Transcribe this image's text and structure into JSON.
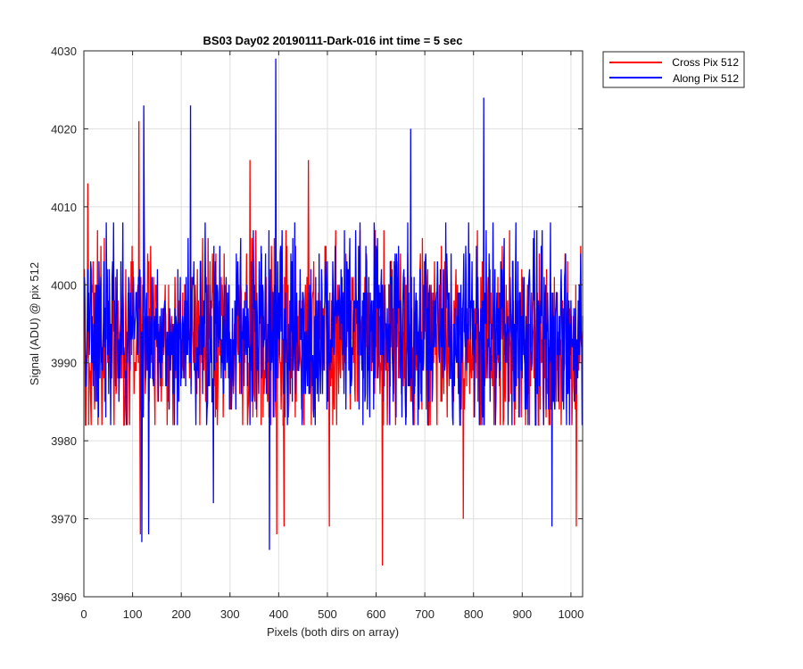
{
  "chart_data": {
    "type": "line",
    "title": "BS03 Day02 20190111-Dark-016 int time = 5 sec",
    "xlabel": "Pixels (both dirs on array)",
    "ylabel": "Signal (ADU) @ pix 512",
    "xlim": [
      0,
      1024
    ],
    "ylim": [
      3960,
      4030
    ],
    "xticks": [
      0,
      100,
      200,
      300,
      400,
      500,
      600,
      700,
      800,
      900,
      1000
    ],
    "yticks": [
      3960,
      3970,
      3980,
      3990,
      4000,
      4010,
      4020,
      4030
    ],
    "grid": true,
    "legend": {
      "placement": "outside-top-right"
    },
    "n_points": 1024,
    "series": [
      {
        "name": "Cross Pix 512",
        "color": "#ff0000",
        "mean": 3993,
        "noise_sd": 6,
        "noise_range": [
          3982,
          4007
        ],
        "extremes": [
          {
            "x": 7,
            "y": 4013
          },
          {
            "x": 112,
            "y": 4021
          },
          {
            "x": 115,
            "y": 3968
          },
          {
            "x": 340,
            "y": 4016
          },
          {
            "x": 395,
            "y": 3968
          },
          {
            "x": 410,
            "y": 3969
          },
          {
            "x": 460,
            "y": 4016
          },
          {
            "x": 503,
            "y": 3969
          },
          {
            "x": 612,
            "y": 3964
          },
          {
            "x": 778,
            "y": 3970
          },
          {
            "x": 1010,
            "y": 3969
          }
        ]
      },
      {
        "name": "Along Pix 512",
        "color": "#0000ff",
        "mean": 3994,
        "noise_sd": 6,
        "noise_range": [
          3982,
          4008
        ],
        "extremes": [
          {
            "x": 118,
            "y": 3967
          },
          {
            "x": 122,
            "y": 4023
          },
          {
            "x": 132,
            "y": 3968
          },
          {
            "x": 218,
            "y": 4023
          },
          {
            "x": 265,
            "y": 3972
          },
          {
            "x": 380,
            "y": 3966
          },
          {
            "x": 393,
            "y": 4029
          },
          {
            "x": 670,
            "y": 4020
          },
          {
            "x": 820,
            "y": 4024
          },
          {
            "x": 960,
            "y": 3969
          }
        ]
      }
    ]
  }
}
